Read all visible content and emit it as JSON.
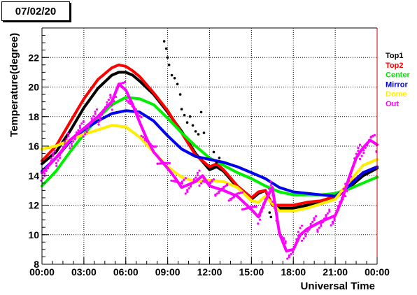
{
  "date_label": "07/02/20",
  "chart_data": {
    "type": "scatter",
    "xlabel": "Universal Time",
    "ylabel": "Temperature(degree)",
    "xlim": [
      0,
      24
    ],
    "ylim": [
      8,
      24
    ],
    "grid": true,
    "legend_position": "right",
    "x_ticks": [
      {
        "value": 0,
        "label": "00:00"
      },
      {
        "value": 3,
        "label": "03:00"
      },
      {
        "value": 6,
        "label": "06:00"
      },
      {
        "value": 9,
        "label": "09:00"
      },
      {
        "value": 12,
        "label": "12:00"
      },
      {
        "value": 15,
        "label": "15:00"
      },
      {
        "value": 18,
        "label": "18:00"
      },
      {
        "value": 21,
        "label": "21:00"
      },
      {
        "value": 24,
        "label": "00:00"
      }
    ],
    "y_ticks": [
      {
        "value": 8,
        "label": "8"
      },
      {
        "value": 10,
        "label": "10"
      },
      {
        "value": 12,
        "label": "12"
      },
      {
        "value": 14,
        "label": "14"
      },
      {
        "value": 16,
        "label": "16"
      },
      {
        "value": 18,
        "label": "18"
      },
      {
        "value": 20,
        "label": "20"
      },
      {
        "value": 22,
        "label": "22"
      }
    ],
    "series": [
      {
        "name": "Top1",
        "color": "#000000",
        "x": [
          0,
          1,
          2,
          3,
          4,
          5,
          5.5,
          6,
          6.5,
          7,
          8,
          9,
          10,
          11,
          12,
          12.5,
          13,
          14,
          15,
          15.5,
          16,
          16.5,
          17,
          18,
          19,
          20,
          21,
          22,
          23,
          24
        ],
        "y": [
          14.8,
          15.6,
          17.0,
          18.6,
          19.9,
          20.8,
          21.0,
          21.0,
          20.8,
          20.4,
          19.5,
          18.3,
          17.0,
          15.5,
          14.4,
          14.6,
          14.3,
          13.2,
          12.4,
          12.8,
          13.0,
          12.0,
          11.8,
          11.8,
          12.0,
          12.2,
          12.5,
          13.2,
          14.0,
          14.5
        ]
      },
      {
        "name": "Top2",
        "color": "#ff0000",
        "x": [
          0,
          1,
          2,
          3,
          4,
          5,
          5.5,
          6,
          6.5,
          7,
          8,
          9,
          10,
          11,
          12,
          12.5,
          13,
          14,
          15,
          15.5,
          16,
          16.5,
          17,
          18,
          19,
          20,
          21,
          22,
          23,
          24
        ],
        "y": [
          15.0,
          16.0,
          17.6,
          19.2,
          20.5,
          21.3,
          21.5,
          21.4,
          21.1,
          20.7,
          19.6,
          18.4,
          16.9,
          15.4,
          14.6,
          14.8,
          14.4,
          13.3,
          12.5,
          12.9,
          13.0,
          12.0,
          12.0,
          12.0,
          12.2,
          12.3,
          12.6,
          13.4,
          14.2,
          14.6
        ]
      },
      {
        "name": "Center",
        "color": "#00ee00",
        "x": [
          0,
          1,
          2,
          3,
          4,
          5,
          6,
          7,
          8,
          9,
          10,
          11,
          12,
          13,
          14,
          15,
          16,
          17,
          18,
          19,
          20,
          21,
          22,
          23,
          24
        ],
        "y": [
          13.3,
          14.3,
          15.6,
          16.8,
          17.9,
          18.8,
          19.3,
          19.2,
          18.8,
          17.9,
          16.9,
          16.0,
          15.2,
          14.7,
          14.2,
          13.8,
          13.3,
          12.9,
          12.7,
          12.7,
          12.7,
          12.8,
          13.1,
          13.5,
          13.9
        ]
      },
      {
        "name": "Mirror",
        "color": "#0000ee",
        "x": [
          0,
          1,
          2,
          3,
          4,
          5,
          6,
          7,
          8,
          9,
          10,
          11,
          12,
          13,
          14,
          15,
          16,
          17,
          18,
          19,
          20,
          21,
          22,
          23,
          24
        ],
        "y": [
          14.3,
          15.2,
          16.3,
          17.1,
          17.7,
          18.2,
          18.4,
          18.3,
          17.7,
          16.7,
          15.8,
          15.3,
          15.1,
          14.9,
          14.6,
          14.2,
          13.8,
          13.2,
          12.9,
          12.8,
          12.7,
          12.6,
          13.3,
          14.2,
          14.6
        ]
      },
      {
        "name": "Dome",
        "color": "#ffee00",
        "x": [
          0,
          1,
          2,
          3,
          4,
          5,
          6,
          7,
          8,
          9,
          10,
          11,
          12,
          13,
          14,
          15,
          15.5,
          16,
          17,
          18,
          19,
          20,
          21,
          22,
          23,
          24
        ],
        "y": [
          15.8,
          16.0,
          16.4,
          16.8,
          17.1,
          17.4,
          17.3,
          16.6,
          15.6,
          14.6,
          13.9,
          13.6,
          13.7,
          13.6,
          13.2,
          12.3,
          12.2,
          12.6,
          11.6,
          11.6,
          11.8,
          12.1,
          12.4,
          13.6,
          14.7,
          15.1
        ]
      },
      {
        "name": "Out",
        "color": "#ff00ff",
        "x": [
          0,
          1,
          2,
          3,
          4,
          5,
          5.5,
          6,
          6.5,
          7,
          7.5,
          8,
          9,
          9.5,
          10,
          11,
          11.5,
          12,
          13,
          14,
          15,
          15.5,
          16,
          16.5,
          17,
          17.5,
          18,
          18.5,
          19,
          20,
          21,
          21.5,
          22,
          22.5,
          23,
          23.5,
          24
        ],
        "y": [
          14.2,
          15.2,
          16.4,
          17.2,
          18.0,
          19.0,
          20.2,
          19.8,
          18.8,
          17.6,
          16.5,
          15.6,
          14.5,
          13.9,
          13.2,
          13.6,
          14.0,
          13.3,
          13.0,
          12.6,
          11.7,
          11.2,
          12.3,
          13.2,
          10.1,
          8.9,
          9.0,
          10.0,
          10.4,
          10.9,
          11.3,
          12.4,
          13.9,
          15.2,
          15.9,
          16.4,
          16.1
        ]
      },
      {
        "name": "Top1",
        "color": "#000000",
        "marker": "scatter",
        "x": [
          8.75,
          8.9,
          9.0,
          9.1,
          9.3,
          9.5,
          9.7,
          9.9,
          10.0,
          10.2,
          10.4,
          10.6,
          10.8,
          11.0,
          11.2,
          11.4,
          11.6,
          12.3,
          12.5,
          12.7,
          16.3,
          16.4
        ],
        "y": [
          23.1,
          22.6,
          22.0,
          21.5,
          20.8,
          20.6,
          20.2,
          19.5,
          18.5,
          18.1,
          17.6,
          18.0,
          17.4,
          17.0,
          16.8,
          18.3,
          16.9,
          15.6,
          14.9,
          15.2,
          11.5,
          11.2
        ]
      }
    ]
  }
}
